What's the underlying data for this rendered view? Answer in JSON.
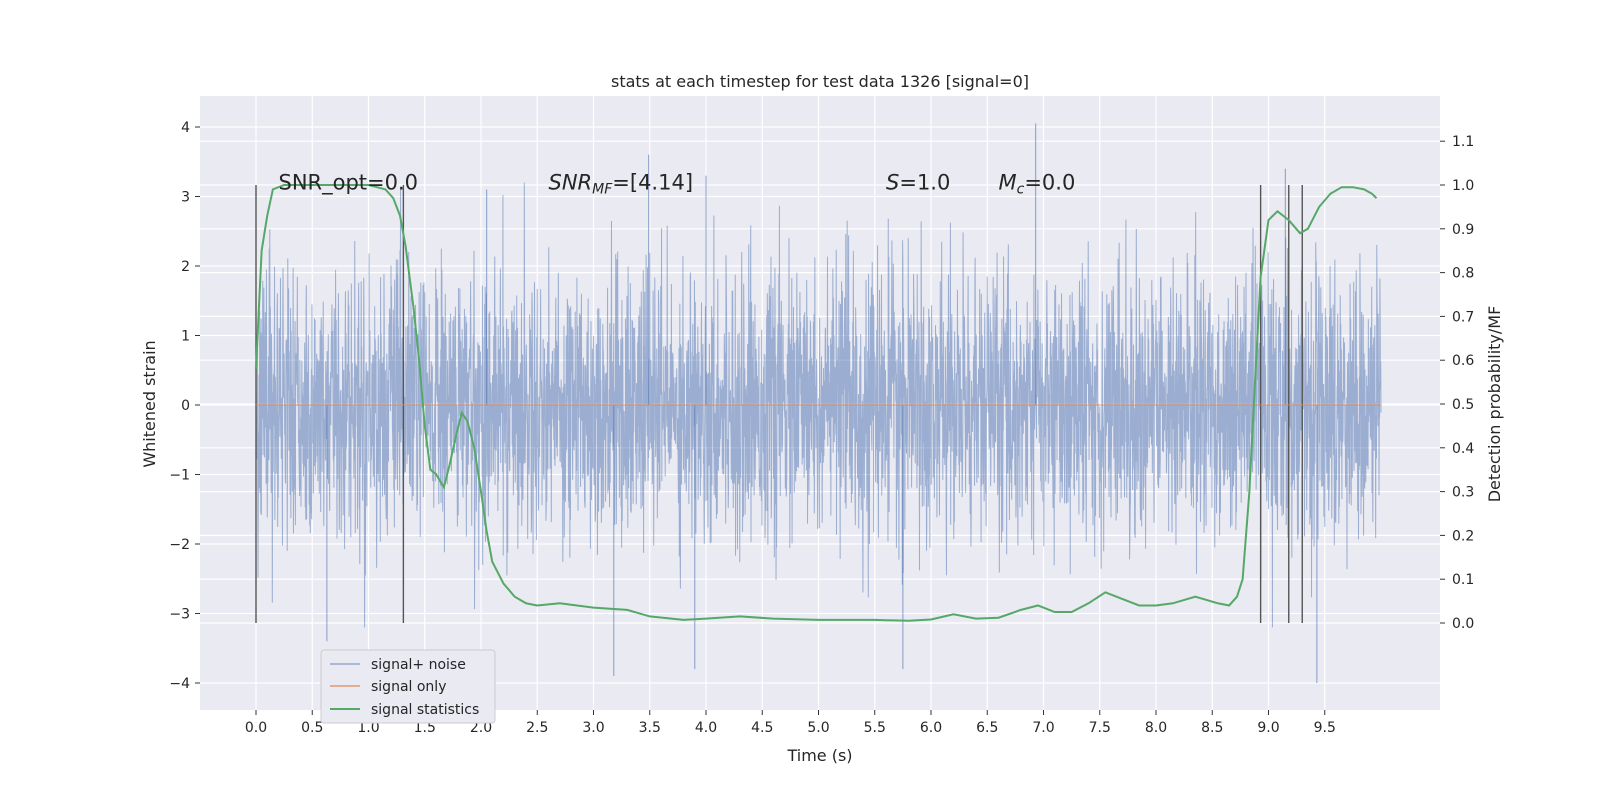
{
  "chart_data": {
    "type": "line",
    "title": "stats at each timestep for test data 1326 [signal=0]",
    "xlabel": "Time (s)",
    "ylabel": "Whitened strain",
    "y2label": "Detection probability/MF",
    "xlim": [
      -0.48,
      10.52
    ],
    "ylim": [
      -4.4,
      4.4
    ],
    "y2lim": [
      -0.19,
      1.19
    ],
    "x_ticks": [
      "0.0",
      "0.5",
      "1.0",
      "1.5",
      "2.0",
      "2.5",
      "3.0",
      "3.5",
      "4.0",
      "4.5",
      "5.0",
      "5.5",
      "6.0",
      "6.5",
      "7.0",
      "7.5",
      "8.0",
      "8.5",
      "9.0",
      "9.5"
    ],
    "y_ticks": [
      "4",
      "3",
      "2",
      "1",
      "0",
      "−1",
      "−2",
      "−3",
      "−4"
    ],
    "y2_ticks": [
      "1.1",
      "1.0",
      "0.9",
      "0.8",
      "0.7",
      "0.6",
      "0.5",
      "0.4",
      "0.3",
      "0.2",
      "0.1",
      "0.0"
    ],
    "grid": true,
    "legend_position": "lower-left",
    "annotations": [
      {
        "text": "SNR_opt=0.0",
        "x": 0.2
      },
      {
        "text": "SNR",
        "sub": "MF",
        "suffix": "=[4.14]",
        "x": 2.6,
        "italic": true
      },
      {
        "text": "S",
        "suffix": "=1.0",
        "x": 5.6,
        "italic": true
      },
      {
        "text": "M",
        "sub": "c",
        "suffix": "=0.0",
        "x": 6.6,
        "italic": true
      }
    ],
    "vertical_lines": [
      0.0,
      1.31,
      8.93,
      9.18,
      9.3
    ],
    "series": [
      {
        "name": "signal+ noise",
        "color": "#4c72b0",
        "x_range": [
          0.0,
          10.0
        ],
        "envelope_peaks": [
          {
            "x": 0.63,
            "y": -3.4
          },
          {
            "x": 2.05,
            "y": 3.1
          },
          {
            "x": 3.49,
            "y": 3.6
          },
          {
            "x": 3.18,
            "y": -3.9
          },
          {
            "x": 3.9,
            "y": -3.8
          },
          {
            "x": 4.0,
            "y": 3.3
          },
          {
            "x": 5.75,
            "y": -3.8
          },
          {
            "x": 6.93,
            "y": 4.05
          },
          {
            "x": 9.15,
            "y": 3.4
          },
          {
            "x": 9.43,
            "y": -4.0
          }
        ]
      },
      {
        "name": "signal only",
        "color": "#dd8452",
        "x": [
          0.0,
          10.0
        ],
        "y": [
          0.0,
          0.0
        ]
      },
      {
        "name": "signal statistics",
        "color": "#55a868",
        "axis": "right",
        "x": [
          0.0,
          0.05,
          0.1,
          0.15,
          0.25,
          0.4,
          0.6,
          0.8,
          1.0,
          1.15,
          1.22,
          1.28,
          1.33,
          1.4,
          1.45,
          1.5,
          1.55,
          1.6,
          1.67,
          1.72,
          1.78,
          1.83,
          1.88,
          1.94,
          2.0,
          2.05,
          2.1,
          2.2,
          2.3,
          2.4,
          2.5,
          2.7,
          3.0,
          3.3,
          3.5,
          3.8,
          4.0,
          4.3,
          4.6,
          5.0,
          5.5,
          5.8,
          6.0,
          6.2,
          6.4,
          6.6,
          6.8,
          6.95,
          7.1,
          7.25,
          7.4,
          7.55,
          7.7,
          7.85,
          8.0,
          8.15,
          8.35,
          8.55,
          8.65,
          8.72,
          8.77,
          8.83,
          8.88,
          8.93,
          9.0,
          9.08,
          9.18,
          9.28,
          9.35,
          9.45,
          9.55,
          9.65,
          9.75,
          9.85,
          9.92,
          9.96
        ],
        "y": [
          0.58,
          0.85,
          0.93,
          0.99,
          1.0,
          1.0,
          1.0,
          1.0,
          1.0,
          0.99,
          0.97,
          0.93,
          0.86,
          0.72,
          0.6,
          0.45,
          0.35,
          0.34,
          0.31,
          0.36,
          0.43,
          0.48,
          0.46,
          0.4,
          0.3,
          0.21,
          0.14,
          0.09,
          0.06,
          0.045,
          0.04,
          0.045,
          0.035,
          0.03,
          0.015,
          0.007,
          0.01,
          0.015,
          0.01,
          0.007,
          0.007,
          0.005,
          0.008,
          0.02,
          0.01,
          0.012,
          0.03,
          0.04,
          0.025,
          0.025,
          0.045,
          0.07,
          0.055,
          0.04,
          0.04,
          0.045,
          0.06,
          0.045,
          0.04,
          0.06,
          0.1,
          0.3,
          0.55,
          0.79,
          0.92,
          0.94,
          0.92,
          0.89,
          0.9,
          0.95,
          0.98,
          0.995,
          0.995,
          0.99,
          0.98,
          0.97
        ]
      }
    ]
  }
}
